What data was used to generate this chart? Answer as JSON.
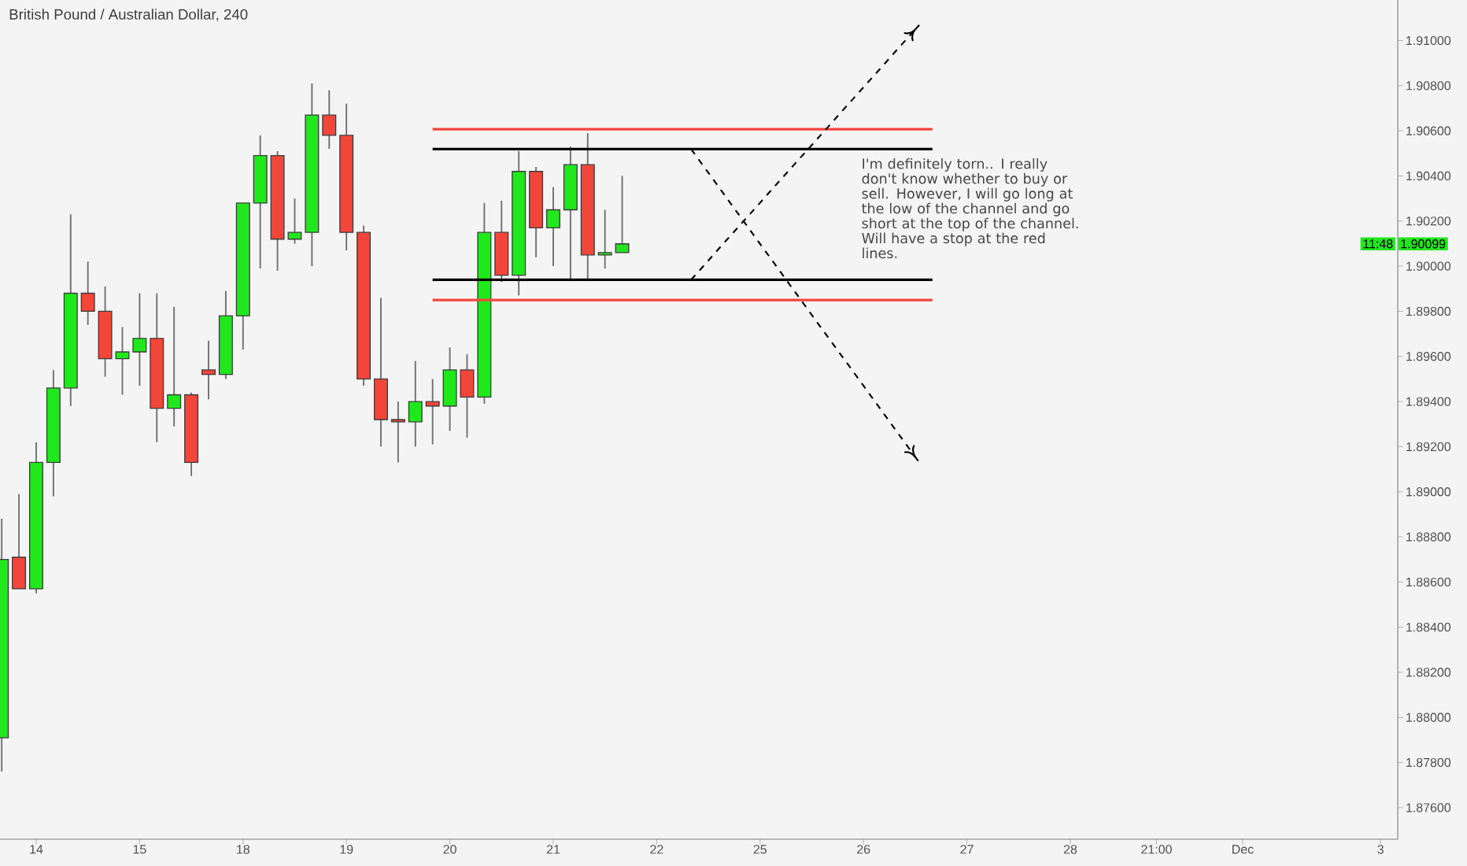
{
  "chart_data": {
    "type": "candlestick",
    "title": "British Pound / Australian Dollar, 240",
    "categories": [
      null,
      null,
      "14",
      null,
      null,
      null,
      null,
      null,
      "15",
      null,
      null,
      null,
      null,
      null,
      "18",
      null,
      null,
      null,
      null,
      null,
      "19",
      null,
      null,
      null,
      null,
      null,
      "20",
      null,
      null,
      null,
      null,
      null,
      "21",
      null,
      null,
      null,
      null,
      null,
      "22",
      null,
      null,
      null,
      null,
      null,
      "25",
      null,
      null,
      null,
      null,
      null,
      "26",
      null,
      null,
      null,
      null,
      null,
      "27",
      null,
      null,
      null,
      null,
      null,
      "28",
      null,
      null,
      null,
      null,
      "21:00",
      null,
      null,
      null,
      null,
      "Dec",
      null,
      null,
      null,
      null,
      null,
      null,
      null,
      "3",
      null
    ],
    "ohlc": [
      [
        1.8791,
        1.8888,
        1.8776,
        1.887
      ],
      [
        1.8871,
        1.8899,
        1.8857,
        1.8857
      ],
      [
        1.8857,
        1.8922,
        1.8855,
        1.8913
      ],
      [
        1.8913,
        1.8954,
        1.8898,
        1.8946
      ],
      [
        1.8946,
        1.9023,
        1.8938,
        1.8988
      ],
      [
        1.8988,
        1.9002,
        1.8974,
        1.898
      ],
      [
        1.898,
        1.8991,
        1.8951,
        1.8959
      ],
      [
        1.8959,
        1.8973,
        1.8943,
        1.8962
      ],
      [
        1.8962,
        1.8988,
        1.8947,
        1.8968
      ],
      [
        1.8968,
        1.8988,
        1.8922,
        1.8937
      ],
      [
        1.8937,
        1.8982,
        1.8929,
        1.8943
      ],
      [
        1.8943,
        1.8944,
        1.8907,
        1.8913
      ],
      [
        1.8954,
        1.8967,
        1.8941,
        1.8952
      ],
      [
        1.8952,
        1.8989,
        1.895,
        1.8978
      ],
      [
        1.8978,
        1.9028,
        1.8963,
        1.9028
      ],
      [
        1.9028,
        1.9058,
        1.8999,
        1.9049
      ],
      [
        1.9049,
        1.9051,
        1.8998,
        1.9012
      ],
      [
        1.9012,
        1.903,
        1.901,
        1.9015
      ],
      [
        1.9015,
        1.9081,
        1.9,
        1.9067
      ],
      [
        1.9067,
        1.9078,
        1.9052,
        1.9058
      ],
      [
        1.9058,
        1.9072,
        1.9007,
        1.9015
      ],
      [
        1.9015,
        1.9018,
        1.8947,
        1.895
      ],
      [
        1.895,
        1.8986,
        1.892,
        1.8932
      ],
      [
        1.8932,
        1.894,
        1.8913,
        1.8931
      ],
      [
        1.8931,
        1.8958,
        1.892,
        1.894
      ],
      [
        1.894,
        1.895,
        1.8921,
        1.8938
      ],
      [
        1.8938,
        1.8964,
        1.8927,
        1.8954
      ],
      [
        1.8954,
        1.8961,
        1.8924,
        1.8942
      ],
      [
        1.8942,
        1.9028,
        1.8939,
        1.9015
      ],
      [
        1.9015,
        1.9029,
        1.8993,
        1.8996
      ],
      [
        1.8996,
        1.9051,
        1.8987,
        1.9042
      ],
      [
        1.9042,
        1.9044,
        1.9004,
        1.9017
      ],
      [
        1.9017,
        1.9035,
        1.9,
        1.9025
      ],
      [
        1.9025,
        1.9053,
        1.8994,
        1.9045
      ],
      [
        1.9045,
        1.9059,
        1.8994,
        1.9005
      ],
      [
        1.9005,
        1.9025,
        1.8999,
        1.9006
      ],
      [
        1.9006,
        1.904,
        1.9006,
        1.90099
      ],
      null,
      null,
      null,
      null,
      null,
      null,
      null,
      null,
      null,
      null,
      null,
      null,
      null,
      null,
      null,
      null,
      null,
      null,
      null,
      null,
      null,
      null,
      null,
      null,
      null,
      null,
      null,
      null,
      null,
      null,
      null,
      null,
      null,
      null,
      null,
      null,
      null,
      null,
      null,
      null,
      null,
      null,
      null,
      null,
      null
    ],
    "colors": [
      "#20e81c",
      "#f2463a",
      "#20e81c",
      "#20e81c",
      "#20e81c",
      "#f2463a",
      "#f2463a",
      "#20e81c",
      "#20e81c",
      "#f2463a",
      "#20e81c",
      "#f2463a",
      "#f2463a",
      "#20e81c",
      "#20e81c",
      "#20e81c",
      "#f2463a",
      "#20e81c",
      "#20e81c",
      "#f2463a",
      "#f2463a",
      "#f2463a",
      "#f2463a",
      "#f2463a",
      "#20e81c",
      "#f2463a",
      "#20e81c",
      "#f2463a",
      "#20e81c",
      "#f2463a",
      "#20e81c",
      "#f2463a",
      "#20e81c",
      "#20e81c",
      "#f2463a",
      "#20e81c",
      "#20e81c",
      null,
      null,
      null,
      null,
      null,
      null,
      null,
      null,
      null,
      null,
      null,
      null,
      null,
      null,
      null,
      null,
      null,
      null,
      null,
      null,
      null,
      null,
      null,
      null,
      null,
      null,
      null,
      null,
      null,
      null,
      null,
      null,
      null,
      null,
      null,
      null,
      null,
      null,
      null,
      null,
      null,
      null,
      null,
      null,
      null
    ],
    "series": [
      {
        "type": "line",
        "color": "#f2463a",
        "line_style": "solid",
        "values": [
          null,
          null,
          null,
          null,
          null,
          null,
          null,
          null,
          null,
          null,
          null,
          null,
          null,
          null,
          null,
          null,
          null,
          null,
          null,
          null,
          null,
          null,
          null,
          null,
          null,
          1.90607,
          1.90607,
          1.90607,
          1.90607,
          1.90607,
          1.90607,
          1.90607,
          1.90607,
          1.90607,
          1.90607,
          1.90607,
          1.90607,
          1.90607,
          1.90607,
          1.90607,
          1.90607,
          1.90607,
          1.90607,
          1.90607,
          1.90607,
          1.90607,
          1.90607,
          1.90607,
          1.90607,
          1.90607,
          1.90607,
          1.90607,
          1.90607,
          1.90607,
          1.90607,
          null,
          null,
          null,
          null,
          null,
          null,
          null,
          null,
          null,
          null,
          null,
          null,
          null,
          null,
          null,
          null,
          null,
          null,
          null,
          null,
          null,
          null,
          null,
          null,
          null,
          null,
          null
        ]
      },
      {
        "type": "line",
        "color": "#000000",
        "line_style": "solid",
        "values": [
          null,
          null,
          null,
          null,
          null,
          null,
          null,
          null,
          null,
          null,
          null,
          null,
          null,
          null,
          null,
          null,
          null,
          null,
          null,
          null,
          null,
          null,
          null,
          null,
          null,
          1.90519,
          1.90519,
          1.90519,
          1.90519,
          1.90519,
          1.90519,
          1.90519,
          1.90519,
          1.90519,
          1.90519,
          1.90519,
          1.90519,
          1.90519,
          1.90519,
          1.90519,
          1.90519,
          1.90519,
          1.90519,
          1.90519,
          1.90519,
          1.90519,
          1.90519,
          1.90519,
          1.90519,
          1.90519,
          1.90519,
          1.90519,
          1.90519,
          1.90519,
          1.90519,
          null,
          null,
          null,
          null,
          null,
          null,
          null,
          null,
          null,
          null,
          null,
          null,
          null,
          null,
          null,
          null,
          null,
          null,
          null,
          null,
          null,
          null,
          null,
          null,
          null,
          null,
          null
        ]
      },
      {
        "type": "line",
        "color": "#000000",
        "line_style": "solid",
        "values": [
          null,
          null,
          null,
          null,
          null,
          null,
          null,
          null,
          null,
          null,
          null,
          null,
          null,
          null,
          null,
          null,
          null,
          null,
          null,
          null,
          null,
          null,
          null,
          null,
          null,
          1.8994,
          1.8994,
          1.8994,
          1.8994,
          1.8994,
          1.8994,
          1.8994,
          1.8994,
          1.8994,
          1.8994,
          1.8994,
          1.8994,
          1.8994,
          1.8994,
          1.8994,
          1.8994,
          1.8994,
          1.8994,
          1.8994,
          1.8994,
          1.8994,
          1.8994,
          1.8994,
          1.8994,
          1.8994,
          1.8994,
          1.8994,
          1.8994,
          1.8994,
          1.8994,
          null,
          null,
          null,
          null,
          null,
          null,
          null,
          null,
          null,
          null,
          null,
          null,
          null,
          null,
          null,
          null,
          null,
          null,
          null,
          null,
          null,
          null,
          null,
          null,
          null,
          null,
          null
        ]
      },
      {
        "type": "line",
        "color": "#f2463a",
        "line_style": "solid",
        "values": [
          null,
          null,
          null,
          null,
          null,
          null,
          null,
          null,
          null,
          null,
          null,
          null,
          null,
          null,
          null,
          null,
          null,
          null,
          null,
          null,
          null,
          null,
          null,
          null,
          null,
          1.8985,
          1.8985,
          1.8985,
          1.8985,
          1.8985,
          1.8985,
          1.8985,
          1.8985,
          1.8985,
          1.8985,
          1.8985,
          1.8985,
          1.8985,
          1.8985,
          1.8985,
          1.8985,
          1.8985,
          1.8985,
          1.8985,
          1.8985,
          1.8985,
          1.8985,
          1.8985,
          1.8985,
          1.8985,
          1.8985,
          1.8985,
          1.8985,
          1.8985,
          1.8985,
          null,
          null,
          null,
          null,
          null,
          null,
          null,
          null,
          null,
          null,
          null,
          null,
          null,
          null,
          null,
          null,
          null,
          null,
          null,
          null,
          null,
          null,
          null,
          null,
          null,
          null,
          null
        ]
      },
      {
        "type": "line",
        "color": "#000000",
        "line_style": "dashed",
        "values": [
          null,
          null,
          null,
          null,
          null,
          null,
          null,
          null,
          null,
          null,
          null,
          null,
          null,
          null,
          null,
          null,
          null,
          null,
          null,
          null,
          null,
          null,
          null,
          null,
          null,
          null,
          null,
          null,
          null,
          null,
          null,
          null,
          null,
          null,
          null,
          null,
          null,
          null,
          null,
          null,
          1.8994,
          1.90025,
          1.90111,
          1.90196,
          1.90281,
          1.90367,
          1.90452,
          1.90537,
          1.90622,
          1.90708,
          1.90793,
          1.90878,
          1.90964,
          1.91049,
          null,
          null,
          null,
          null,
          null,
          null,
          null,
          null,
          null,
          null,
          null,
          null,
          null,
          null,
          null,
          null,
          null,
          null,
          null,
          null,
          null,
          null,
          null,
          null,
          null,
          null,
          null,
          null
        ]
      },
      {
        "type": "line",
        "color": "#000000",
        "line_style": "dashed",
        "values": [
          null,
          null,
          null,
          null,
          null,
          null,
          null,
          null,
          null,
          null,
          null,
          null,
          null,
          null,
          null,
          null,
          null,
          null,
          null,
          null,
          null,
          null,
          null,
          null,
          null,
          null,
          null,
          null,
          null,
          null,
          null,
          null,
          null,
          null,
          null,
          null,
          null,
          null,
          null,
          null,
          1.90519,
          1.90414,
          1.90309,
          1.90204,
          1.90099,
          1.89994,
          1.89889,
          1.89784,
          1.89679,
          1.89575,
          1.8947,
          1.89365,
          1.8926,
          1.89155,
          null,
          null,
          null,
          null,
          null,
          null,
          null,
          null,
          null,
          null,
          null,
          null,
          null,
          null,
          null,
          null,
          null,
          null,
          null,
          null,
          null,
          null,
          null,
          null,
          null,
          null,
          null,
          null
        ]
      }
    ],
    "annotations": [
      "I'm definitely torn.. I really don't know whether to buy or sell. However, I will go long at the low of the channel and go short at the top of the channel. Will have a stop at the red lines.",
      "1.90099",
      "11:48"
    ],
    "ylim": [
      1.8746,
      1.9118
    ],
    "yticks": [
      {
        "value": 1.876,
        "label": "1.87600"
      },
      {
        "value": 1.878,
        "label": "1.87800"
      },
      {
        "value": 1.88,
        "label": "1.88000"
      },
      {
        "value": 1.882,
        "label": "1.88200"
      },
      {
        "value": 1.884,
        "label": "1.88400"
      },
      {
        "value": 1.886,
        "label": "1.88600"
      },
      {
        "value": 1.888,
        "label": "1.88800"
      },
      {
        "value": 1.89,
        "label": "1.89000"
      },
      {
        "value": 1.892,
        "label": "1.89200"
      },
      {
        "value": 1.894,
        "label": "1.89400"
      },
      {
        "value": 1.896,
        "label": "1.89600"
      },
      {
        "value": 1.898,
        "label": "1.89800"
      },
      {
        "value": 1.9,
        "label": "1.90000"
      },
      {
        "value": 1.902,
        "label": "1.90200"
      },
      {
        "value": 1.904,
        "label": "1.90400"
      },
      {
        "value": 1.906,
        "label": "1.90600"
      },
      {
        "value": 1.908,
        "label": "1.90800"
      },
      {
        "value": 1.91,
        "label": "1.91000"
      }
    ]
  }
}
